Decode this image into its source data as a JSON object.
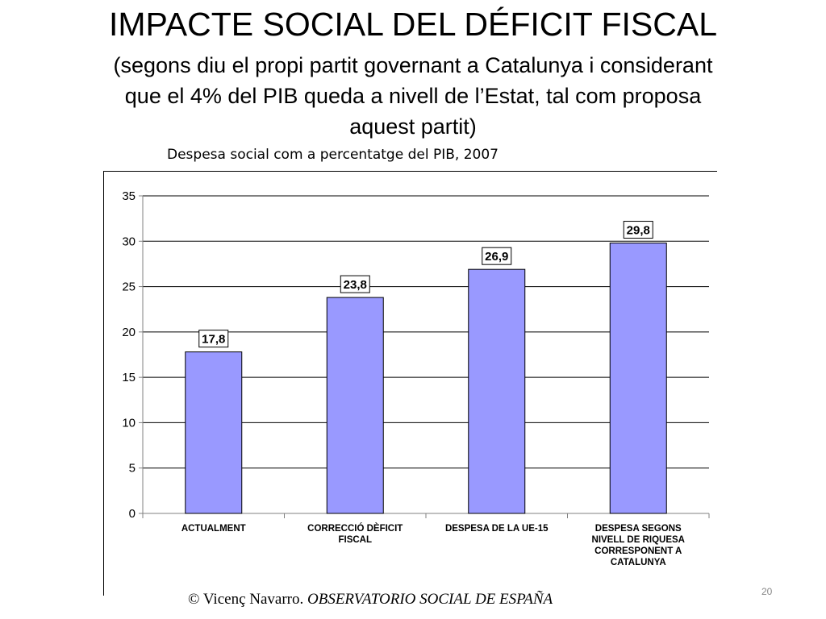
{
  "slide": {
    "title": "IMPACTE SOCIAL DEL DÉFICIT FISCAL",
    "subtitle_line1": "(segons diu el propi partit governant a Catalunya i considerant",
    "subtitle_line2": "que el 4% del PIB queda a nivell de l’Estat, tal com proposa",
    "subtitle_line3": "aquest partit)",
    "chart_caption": "Despesa social com a percentatge del PIB, 2007",
    "footer_author": "© Vicenç Navarro. ",
    "footer_source": "OBSERVATORIO SOCIAL DE ESPAÑA",
    "page_number": "20"
  },
  "chart_data": {
    "type": "bar",
    "title": "Despesa social com a percentatge del PIB, 2007",
    "categories": [
      [
        "ACTUALMENT"
      ],
      [
        "CORRECCIÓ DÈFICIT",
        "FISCAL"
      ],
      [
        "DESPESA DE LA UE-15"
      ],
      [
        "DESPESA SEGONS",
        "NIVELL DE RIQUESA",
        "CORRESPONENT A",
        "CATALUNYA"
      ]
    ],
    "values": [
      17.8,
      23.8,
      26.9,
      29.8
    ],
    "data_labels": [
      "17,8",
      "23,8",
      "26,9",
      "29,8"
    ],
    "ylim": [
      0,
      35
    ],
    "yticks": [
      0,
      5,
      10,
      15,
      20,
      25,
      30,
      35
    ],
    "grid": true,
    "legend": "none",
    "colors": {
      "bar": "#9999ff",
      "bar_border": "#000000",
      "grid": "#000000",
      "axis": "#808080"
    }
  }
}
